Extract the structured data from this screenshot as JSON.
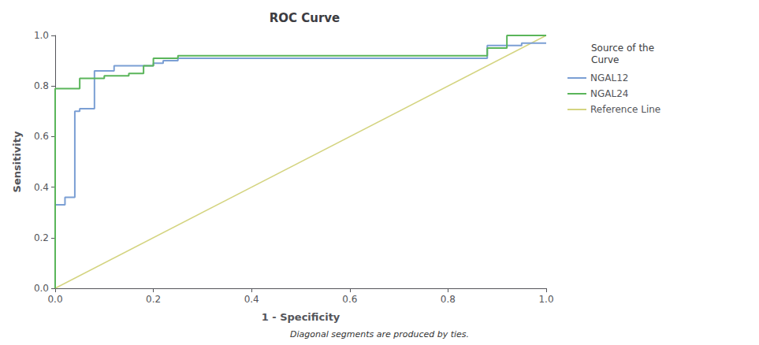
{
  "chart_data": {
    "type": "line",
    "title": "ROC Curve",
    "xlabel": "1 - Specificity",
    "ylabel": "Sensitivity",
    "footnote": "Diagonal segments are produced by ties.",
    "legend_title": "Source of the\nCurve",
    "legend": "upper right",
    "grid": false,
    "xlim": [
      0.0,
      1.0
    ],
    "ylim": [
      0.0,
      1.0
    ],
    "xticks": [
      {
        "value": 0,
        "label": "0.0"
      },
      0.2,
      0.4,
      0.6,
      0.8,
      {
        "value": 1,
        "label": "1.0"
      }
    ],
    "yticks": [
      {
        "value": 0,
        "label": "0.0"
      },
      0.2,
      0.4,
      0.6,
      0.8,
      {
        "value": 1,
        "label": "1.0"
      }
    ],
    "series": [
      {
        "name": "NGAL12",
        "color": "#7b9fd4",
        "x": [
          0.0,
          0.0,
          0.0,
          0.0,
          0.02,
          0.02,
          0.04,
          0.04,
          0.05,
          0.05,
          0.08,
          0.08,
          0.12,
          0.12,
          0.2,
          0.2,
          0.22,
          0.22,
          0.25,
          0.25,
          0.5,
          0.5,
          0.55,
          0.55,
          0.88,
          0.88,
          0.95,
          0.95,
          1.0
        ],
        "values": [
          0.0,
          0.05,
          0.12,
          0.33,
          0.33,
          0.36,
          0.36,
          0.7,
          0.7,
          0.71,
          0.71,
          0.86,
          0.86,
          0.88,
          0.88,
          0.89,
          0.89,
          0.9,
          0.9,
          0.91,
          0.91,
          0.91,
          0.91,
          0.91,
          0.91,
          0.96,
          0.96,
          0.97,
          0.97
        ]
      },
      {
        "name": "NGAL24",
        "color": "#5ab55a",
        "x": [
          0.0,
          0.0,
          0.0,
          0.05,
          0.05,
          0.1,
          0.1,
          0.15,
          0.15,
          0.18,
          0.18,
          0.2,
          0.2,
          0.25,
          0.25,
          0.5,
          0.5,
          0.55,
          0.55,
          0.88,
          0.88,
          0.92,
          0.92,
          1.0,
          1.0
        ],
        "values": [
          0.0,
          0.52,
          0.79,
          0.79,
          0.83,
          0.83,
          0.84,
          0.84,
          0.85,
          0.85,
          0.88,
          0.88,
          0.91,
          0.91,
          0.92,
          0.92,
          0.92,
          0.92,
          0.92,
          0.92,
          0.95,
          0.95,
          1.0,
          1.0,
          1.0
        ]
      },
      {
        "name": "Reference Line",
        "color": "#d4d480",
        "x": [
          0.0,
          1.0
        ],
        "values": [
          0.0,
          1.0
        ]
      }
    ]
  }
}
